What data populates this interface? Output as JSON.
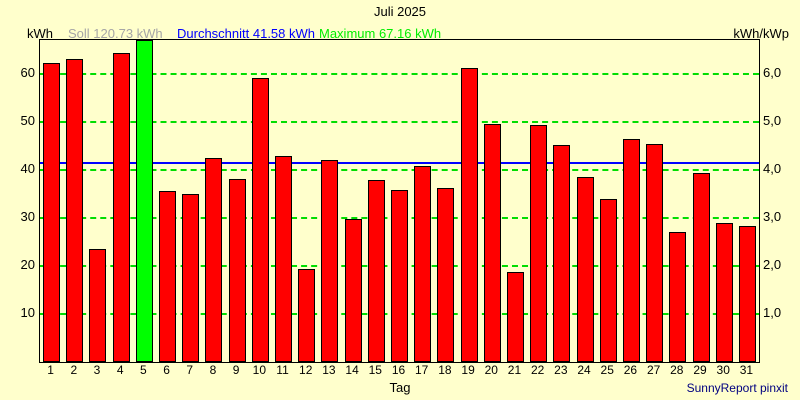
{
  "title": "Juli 2025",
  "legend": {
    "left_axis_unit": "kWh",
    "soll": "Soll 120.73 kWh",
    "durchschnitt": "Durchschnitt 41.58 kWh",
    "maximum": "Maximum 67.16 kWh",
    "right_axis_unit": "kWh/kWp"
  },
  "footer": {
    "xlabel": "Tag",
    "credit": "SunnyReport pinxit"
  },
  "colors": {
    "background": "#FFFFCC",
    "bar": "#FF0000",
    "bar_max": "#00FF00",
    "gridline": "#00DD00",
    "average_line": "#0000FF",
    "soll_text": "#A6A6A6",
    "credit_text": "#000080"
  },
  "chart_data": {
    "type": "bar",
    "title": "Juli 2025",
    "xlabel": "Tag",
    "ylabel_left": "kWh",
    "ylabel_right": "kWh/kWp",
    "categories": [
      1,
      2,
      3,
      4,
      5,
      6,
      7,
      8,
      9,
      10,
      11,
      12,
      13,
      14,
      15,
      16,
      17,
      18,
      19,
      20,
      21,
      22,
      23,
      24,
      25,
      26,
      27,
      28,
      29,
      30,
      31
    ],
    "values": [
      62.3,
      63.2,
      23.6,
      64.4,
      67.16,
      35.6,
      35.1,
      42.6,
      38.2,
      59.2,
      42.9,
      19.5,
      42.2,
      29.8,
      38.0,
      35.8,
      40.8,
      36.2,
      61.4,
      49.6,
      18.7,
      49.4,
      45.2,
      38.6,
      34.1,
      46.5,
      45.4,
      27.2,
      39.4,
      28.9,
      28.3
    ],
    "max_day": 5,
    "soll_kwh": 120.73,
    "durchschnitt_kwh": 41.58,
    "maximum_kwh": 67.16,
    "ylim": [
      0,
      67.16
    ],
    "left_ticks": [
      10,
      20,
      30,
      40,
      50,
      60
    ],
    "right_tick_labels": [
      "1,0",
      "2,0",
      "3,0",
      "4,0",
      "5,0",
      "6,0"
    ],
    "grid": true,
    "legend_position": "top"
  }
}
